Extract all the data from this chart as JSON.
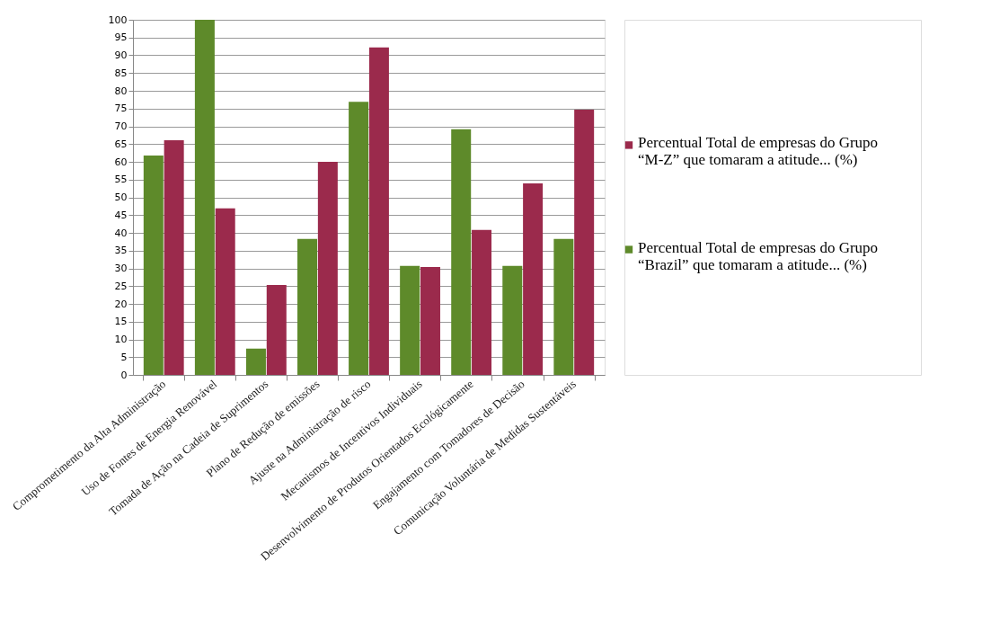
{
  "chart_data": {
    "type": "bar",
    "categories": [
      "Comprometimento da Alta Administração",
      "Uso de Fontes de Energia Renovável",
      "Tomada de Ação na Cadeia de Suprimentos",
      "Plano de Redução de emissões",
      "Ajuste na Administração de risco",
      "Mecanismos de Incentivos Individuais",
      "Desenvolvimento de Produtos Orientados Ecológicamente",
      "Engajamento com Tomadores de Decisão",
      "Comunicação Voluntária de Medidas Sustentáveis"
    ],
    "series": [
      {
        "name": "Percentual Total de empresas  do Grupo “Brazil” que tomaram a atitude... (%)",
        "color": "#5e8a2a",
        "values": [
          61.8,
          100,
          7.4,
          38.3,
          76.9,
          30.7,
          69.2,
          30.7,
          38.3
        ]
      },
      {
        "name": "Percentual Total de empresas do Grupo “M-Z” que tomaram a atitude... (%)",
        "color": "#9b2a4c",
        "values": [
          66.1,
          46.9,
          25.3,
          60,
          92.2,
          30.4,
          40.8,
          53.9,
          74.7
        ]
      }
    ],
    "ylim": [
      0,
      100
    ],
    "yticks": [
      0,
      5,
      10,
      15,
      20,
      25,
      30,
      35,
      40,
      45,
      50,
      55,
      60,
      65,
      70,
      75,
      80,
      85,
      90,
      95,
      100
    ],
    "grid": "y",
    "legend": "right"
  }
}
